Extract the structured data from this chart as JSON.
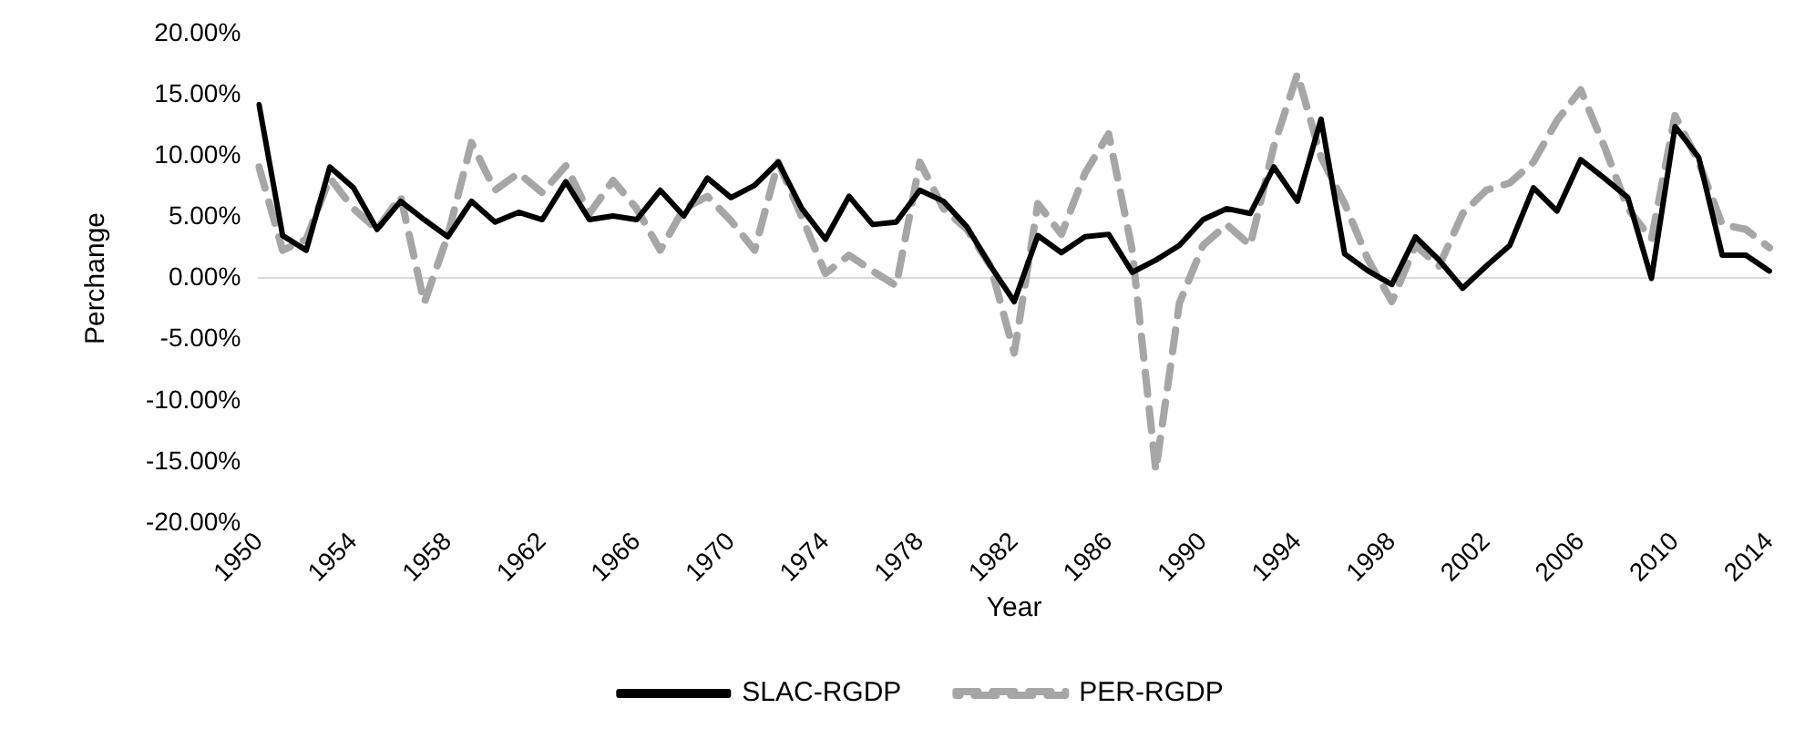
{
  "chart_data": {
    "type": "line",
    "xlabel": "Year",
    "ylabel": "Perchange",
    "categories": [
      "1950",
      null,
      null,
      null,
      "1954",
      null,
      null,
      null,
      "1958",
      null,
      null,
      null,
      "1962",
      null,
      null,
      null,
      "1966",
      null,
      null,
      null,
      "1970",
      null,
      null,
      null,
      "1974",
      null,
      null,
      null,
      "1978",
      null,
      null,
      null,
      "1982",
      null,
      null,
      null,
      "1986",
      null,
      null,
      null,
      "1990",
      null,
      null,
      null,
      "1994",
      null,
      null,
      null,
      "1998",
      null,
      null,
      null,
      "2002",
      null,
      null,
      null,
      "2006",
      null,
      null,
      null,
      "2010",
      null,
      null,
      null,
      "2014"
    ],
    "series": [
      {
        "name": "SLAC-RGDP",
        "color": "#000000",
        "line_style": "solid",
        "values": [
          14.2,
          3.5,
          2.3,
          9.1,
          7.4,
          4.0,
          6.3,
          4.8,
          3.4,
          6.3,
          4.6,
          5.4,
          4.8,
          7.9,
          4.8,
          5.1,
          4.8,
          7.2,
          5.1,
          8.2,
          6.6,
          7.6,
          9.5,
          5.7,
          3.2,
          6.7,
          4.4,
          4.6,
          7.2,
          6.3,
          4.2,
          1.0,
          -1.9,
          3.5,
          2.1,
          3.4,
          3.6,
          0.5,
          1.5,
          2.7,
          4.8,
          5.7,
          5.3,
          9.1,
          6.3,
          13.0,
          2.0,
          0.6,
          -0.5,
          3.4,
          1.5,
          -0.8,
          1.0,
          2.7,
          7.4,
          5.5,
          9.7,
          8.2,
          6.6,
          0,
          12.4,
          9.9,
          1.9,
          1.9,
          0.6
        ]
      },
      {
        "name": "PER-RGDP",
        "color": "#a6a6a6",
        "line_style": "dashed",
        "values": [
          9.1,
          2.3,
          3.2,
          8.2,
          5.7,
          4.0,
          6.7,
          -2.0,
          3.5,
          11.1,
          7.2,
          8.6,
          7.0,
          9.2,
          5.3,
          8.0,
          5.7,
          2.3,
          5.7,
          6.7,
          4.7,
          2.3,
          9.5,
          5.0,
          0.4,
          1.9,
          0.6,
          -0.6,
          9.5,
          5.7,
          4.0,
          1.0,
          -6.1,
          6.1,
          3.6,
          8.6,
          11.8,
          2.3,
          -15.7,
          -2.0,
          2.7,
          4.4,
          2.7,
          10.8,
          16.7,
          9.9,
          6.1,
          1.5,
          -1.9,
          2.7,
          1.0,
          5.3,
          7.2,
          7.8,
          9.5,
          12.9,
          15.4,
          10.8,
          5.7,
          3.2,
          13.3,
          9.5,
          4.4,
          4.0,
          2.5
        ]
      }
    ],
    "ylim": [
      -20,
      20
    ],
    "yticks": [
      {
        "value": -20,
        "label": "-20.00%"
      },
      {
        "value": -15,
        "label": "-15.00%"
      },
      {
        "value": -10,
        "label": "-10.00%"
      },
      {
        "value": -5,
        "label": "-5.00%"
      },
      {
        "value": 0,
        "label": "0.00%"
      },
      {
        "value": 5,
        "label": "5.00%"
      },
      {
        "value": 10,
        "label": "10.00%"
      },
      {
        "value": 15,
        "label": "15.00%"
      },
      {
        "value": 20,
        "label": "20.00%"
      }
    ],
    "legend": "bottom",
    "marker": "none"
  }
}
